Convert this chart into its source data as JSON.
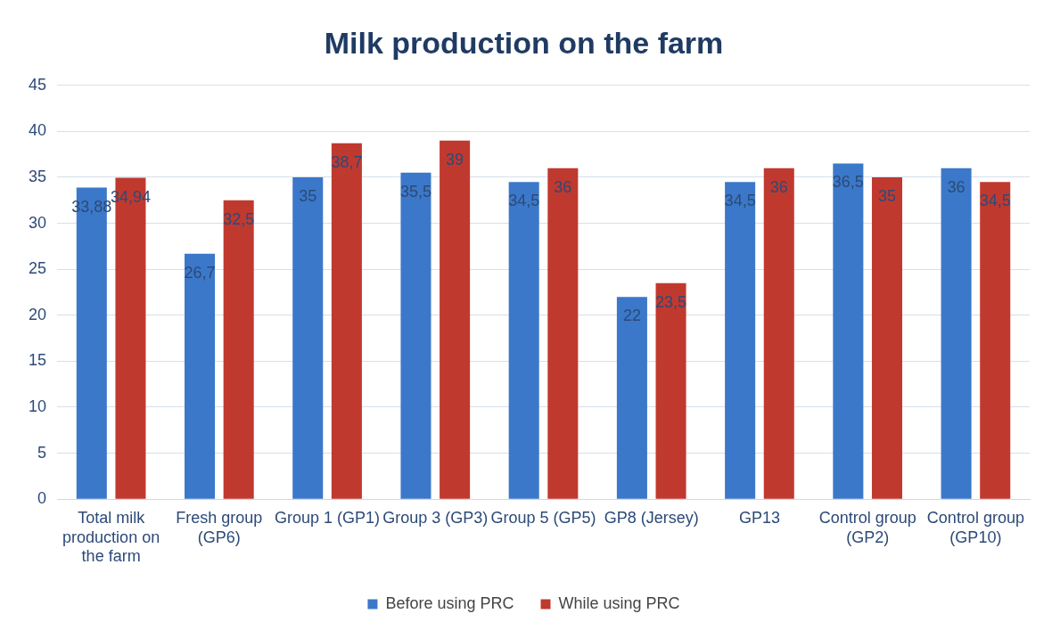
{
  "chart_data": {
    "type": "bar",
    "title": "Milk production on the farm",
    "categories": [
      "Total milk production on the farm",
      "Fresh group (GP6)",
      "Group 1 (GP1)",
      "Group 3 (GP3)",
      "Group 5 (GP5)",
      "GP8 (Jersey)",
      "GP13",
      "Control group (GP2)",
      "Control group (GP10)"
    ],
    "series": [
      {
        "name": "Before using PRC",
        "color": "#3b78c9",
        "values": [
          33.88,
          26.7,
          35,
          35.5,
          34.5,
          22,
          34.5,
          36.5,
          36
        ],
        "value_labels": [
          "33,88",
          "26,7",
          "35",
          "35,5",
          "34,5",
          "22",
          "34,5",
          "36,5",
          "36"
        ]
      },
      {
        "name": "While using PRC",
        "color": "#c0392f",
        "values": [
          34.94,
          32.5,
          38.7,
          39,
          36,
          23.5,
          36,
          35,
          34.5
        ],
        "value_labels": [
          "34,94",
          "32,5",
          "38,7",
          "39",
          "36",
          "23,5",
          "36",
          "35",
          "34,5"
        ]
      }
    ],
    "ylim": [
      0,
      45
    ],
    "yticks": [
      0,
      5,
      10,
      15,
      20,
      25,
      30,
      35,
      40,
      45
    ],
    "grid": "y",
    "legend": "bottom"
  }
}
